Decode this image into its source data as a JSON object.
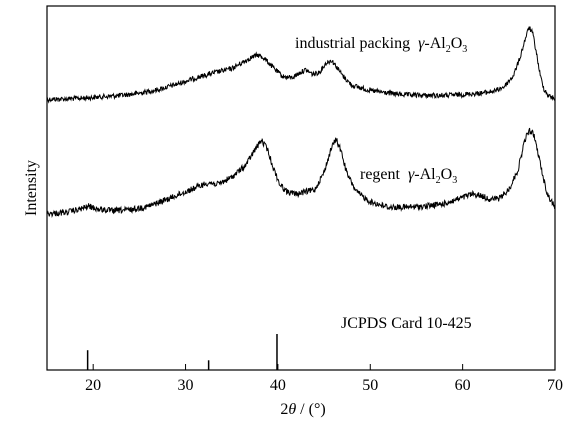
{
  "chart_data": {
    "type": "line",
    "title": "",
    "xlabel": "2θ / (°)",
    "xlabel_parts": {
      "theta_prefix": "2",
      "theta": "θ",
      "unit_part": " / (°)"
    },
    "ylabel": "Intensity",
    "xlim": [
      15,
      70
    ],
    "x_ticks": [
      20,
      30,
      40,
      50,
      60,
      70
    ],
    "y_ticks_shown": false,
    "grid": false,
    "legend": "none",
    "color": "#000000",
    "series": [
      {
        "label_parts": {
          "prefix": "industrial packing",
          "gamma": "γ",
          "formula_prefix": "-Al",
          "sub1": "2",
          "formula_mid": "O",
          "sub2": "3"
        },
        "x": [
          15,
          17,
          19,
          21,
          23,
          25,
          27,
          29,
          31,
          33,
          35,
          36,
          37,
          37.8,
          38.5,
          39.5,
          40.5,
          41.5,
          42.5,
          43,
          43.8,
          44.5,
          45.2,
          45.8,
          46.3,
          47,
          48,
          50,
          52,
          54,
          56,
          58,
          60,
          62,
          63.5,
          64.5,
          65.5,
          66.2,
          66.8,
          67.2,
          67.6,
          68,
          68.4,
          68.8,
          69.3,
          70
        ],
        "y": [
          0.06,
          0.07,
          0.09,
          0.12,
          0.15,
          0.2,
          0.28,
          0.4,
          0.54,
          0.66,
          0.76,
          0.88,
          1.0,
          1.07,
          1.0,
          0.78,
          0.58,
          0.55,
          0.68,
          0.73,
          0.63,
          0.68,
          0.88,
          0.95,
          0.82,
          0.6,
          0.38,
          0.26,
          0.2,
          0.16,
          0.15,
          0.15,
          0.17,
          0.2,
          0.25,
          0.35,
          0.6,
          1.0,
          1.45,
          1.7,
          1.55,
          1.1,
          0.6,
          0.3,
          0.14,
          0.08
        ]
      },
      {
        "label_parts": {
          "prefix": "regent",
          "gamma": "γ",
          "formula_prefix": "-Al",
          "sub1": "2",
          "formula_mid": "O",
          "sub2": "3"
        },
        "x": [
          15,
          17,
          18.5,
          19.5,
          20.5,
          22,
          24,
          26,
          28,
          30,
          31.5,
          32.5,
          33.5,
          35,
          36.5,
          37.5,
          38.2,
          38.8,
          39.5,
          40.2,
          41,
          42,
          43,
          44,
          45,
          45.8,
          46.3,
          46.8,
          47.5,
          48.5,
          50,
          52,
          54,
          56,
          58,
          60,
          61,
          62,
          63,
          64,
          65,
          66,
          66.7,
          67.2,
          67.7,
          68.2,
          68.7,
          69.2,
          70
        ],
        "y": [
          0.05,
          0.08,
          0.15,
          0.22,
          0.16,
          0.12,
          0.14,
          0.22,
          0.38,
          0.55,
          0.68,
          0.76,
          0.72,
          0.88,
          1.15,
          1.5,
          1.72,
          1.55,
          1.1,
          0.72,
          0.55,
          0.5,
          0.55,
          0.6,
          1.0,
          1.55,
          1.75,
          1.5,
          0.95,
          0.55,
          0.32,
          0.2,
          0.2,
          0.22,
          0.28,
          0.42,
          0.5,
          0.46,
          0.38,
          0.4,
          0.6,
          1.05,
          1.7,
          1.95,
          1.85,
          1.4,
          0.9,
          0.48,
          0.2
        ]
      }
    ],
    "reference": {
      "label": "JCPDS Card 10-425",
      "lines": [
        {
          "x": 19.4,
          "height": 0.55
        },
        {
          "x": 32.5,
          "height": 0.27
        },
        {
          "x": 39.9,
          "height": 1.0
        }
      ]
    }
  }
}
